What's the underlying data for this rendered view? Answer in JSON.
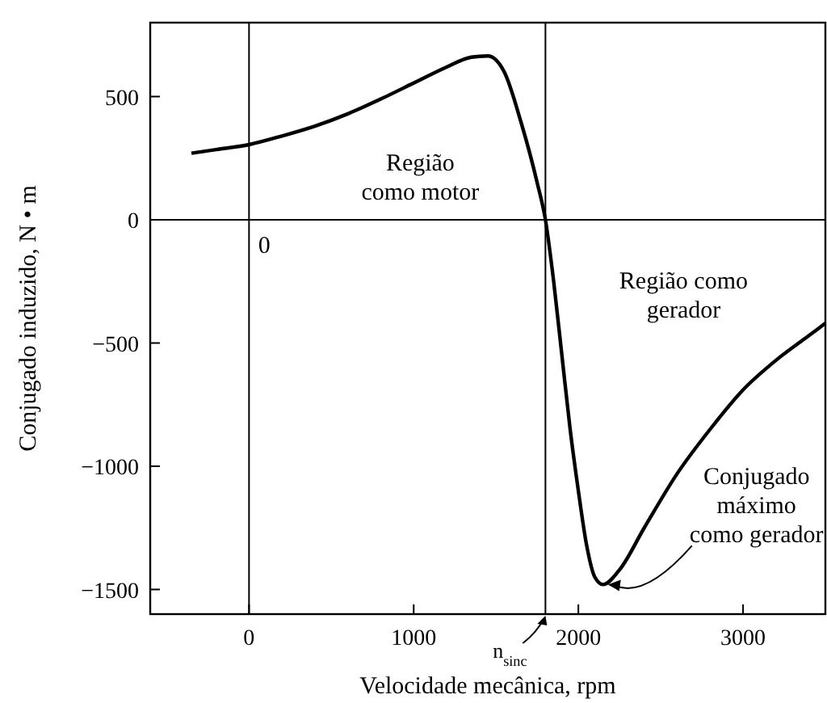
{
  "chart_data": {
    "type": "line",
    "xlabel": "Velocidade mecânica, rpm",
    "ylabel": "Conjugado induzido, N • m",
    "xlim": [
      -600,
      3500
    ],
    "ylim": [
      -1600,
      800
    ],
    "xticks": [
      0,
      1000,
      2000,
      3000
    ],
    "yticks": [
      500,
      0,
      {
        "value": -500,
        "label": "−500"
      },
      {
        "value": -1000,
        "label": "−1000"
      },
      {
        "value": -1500,
        "label": "−1500"
      }
    ],
    "grid": false,
    "marker": "none",
    "line_style": "solid",
    "ref_lines": [
      {
        "axis": "x",
        "value": 0,
        "color": "#000000"
      },
      {
        "axis": "y",
        "value": 0,
        "color": "#000000"
      },
      {
        "axis": "x",
        "value": 1800,
        "label": "n$_{sinc}$",
        "color": "#000000"
      }
    ],
    "annotations": [
      "Região\ncomo motor",
      "0",
      "Região como\ngerador",
      {
        "text": "Conjugado\nmáximo\ncomo gerador",
        "x": 2150,
        "y": -1480
      }
    ],
    "x": [
      -350,
      -200,
      0,
      200,
      400,
      600,
      800,
      1000,
      1200,
      1350,
      1450,
      1550,
      1650,
      1750,
      1800,
      1850,
      1900,
      1950,
      2000,
      2050,
      2100,
      2150,
      2250,
      2400,
      2600,
      2800,
      3000,
      3200,
      3400,
      3500
    ],
    "series": [
      {
        "color": "#000000",
        "values": [
          270,
          285,
          305,
          340,
          380,
          430,
          490,
          555,
          620,
          660,
          665,
          600,
          400,
          150,
          0,
          -250,
          -550,
          -850,
          -1100,
          -1320,
          -1450,
          -1480,
          -1420,
          -1250,
          -1030,
          -850,
          -690,
          -570,
          -470,
          -420
        ]
      }
    ]
  }
}
